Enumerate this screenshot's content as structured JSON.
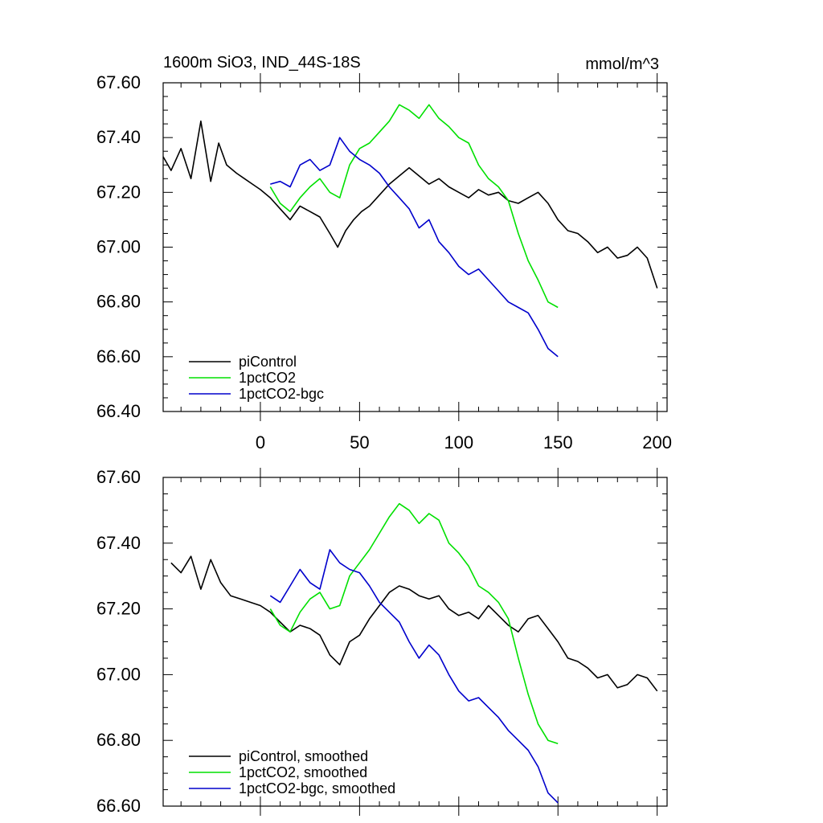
{
  "colors": {
    "piControl": "#000000",
    "1pctCO2": "#00e000",
    "1pctCO2-bgc": "#0000cc"
  },
  "top_title_left": "1600m SiO3, IND_44S-18S",
  "top_title_right": "mmol/m^3",
  "chart_data": [
    {
      "type": "line",
      "title": "1600m SiO3, IND_44S-18S",
      "units": "mmol/m^3",
      "xlim": [
        -49,
        205
      ],
      "ylim": [
        66.4,
        67.6
      ],
      "xticks": [
        0,
        50,
        100,
        150,
        200
      ],
      "xtick_labels": [
        "0",
        "50",
        "100",
        "150",
        "200"
      ],
      "yticks": [
        66.4,
        66.6,
        66.8,
        67.0,
        67.2,
        67.4,
        67.6
      ],
      "ytick_labels": [
        "66.40",
        "66.60",
        "66.80",
        "67.00",
        "67.20",
        "67.40",
        "67.60"
      ],
      "grid": false,
      "legend_position": "bottom-left",
      "series": [
        {
          "name": "piControl",
          "x": [
            -49,
            -45,
            -40,
            -35,
            -30,
            -25,
            -21,
            -17,
            -12,
            -8,
            -4,
            0,
            5,
            10,
            15,
            20,
            25,
            30,
            35,
            39,
            43,
            47,
            51,
            55,
            60,
            65,
            70,
            75,
            80,
            85,
            90,
            95,
            100,
            105,
            110,
            115,
            120,
            125,
            130,
            135,
            140,
            145,
            150,
            155,
            160,
            165,
            170,
            175,
            180,
            185,
            190,
            195,
            200
          ],
          "y": [
            67.33,
            67.28,
            67.36,
            67.25,
            67.46,
            67.24,
            67.38,
            67.3,
            67.27,
            67.25,
            67.23,
            67.21,
            67.18,
            67.14,
            67.1,
            67.15,
            67.13,
            67.11,
            67.05,
            67.0,
            67.06,
            67.1,
            67.13,
            67.15,
            67.19,
            67.23,
            67.26,
            67.29,
            67.26,
            67.23,
            67.25,
            67.22,
            67.2,
            67.18,
            67.21,
            67.19,
            67.2,
            67.17,
            67.16,
            67.18,
            67.2,
            67.16,
            67.1,
            67.06,
            67.05,
            67.02,
            66.98,
            67.0,
            66.96,
            66.97,
            67.0,
            66.96,
            66.85
          ]
        },
        {
          "name": "1pctCO2",
          "x": [
            5,
            10,
            15,
            20,
            25,
            30,
            35,
            40,
            45,
            50,
            55,
            60,
            65,
            70,
            75,
            80,
            85,
            90,
            95,
            100,
            105,
            110,
            115,
            120,
            125,
            130,
            135,
            140,
            145,
            150
          ],
          "y": [
            67.22,
            67.16,
            67.13,
            67.18,
            67.22,
            67.25,
            67.2,
            67.18,
            67.3,
            67.36,
            67.38,
            67.42,
            67.46,
            67.52,
            67.5,
            67.47,
            67.52,
            67.47,
            67.44,
            67.4,
            67.38,
            67.3,
            67.25,
            67.22,
            67.17,
            67.05,
            66.95,
            66.88,
            66.8,
            66.78
          ]
        },
        {
          "name": "1pctCO2-bgc",
          "x": [
            5,
            10,
            15,
            20,
            25,
            30,
            35,
            40,
            45,
            50,
            55,
            60,
            65,
            70,
            75,
            80,
            85,
            90,
            95,
            100,
            105,
            110,
            115,
            120,
            125,
            130,
            135,
            140,
            145,
            150
          ],
          "y": [
            67.23,
            67.24,
            67.22,
            67.3,
            67.32,
            67.28,
            67.3,
            67.4,
            67.35,
            67.32,
            67.3,
            67.27,
            67.22,
            67.18,
            67.14,
            67.07,
            67.1,
            67.02,
            66.98,
            66.93,
            66.9,
            66.92,
            66.88,
            66.84,
            66.8,
            66.78,
            66.76,
            66.7,
            66.63,
            66.6
          ]
        }
      ]
    },
    {
      "type": "line",
      "xlim": [
        -49,
        205
      ],
      "ylim": [
        66.6,
        67.6
      ],
      "xticks": [
        0,
        50,
        100,
        150,
        200
      ],
      "yticks": [
        66.6,
        66.8,
        67.0,
        67.2,
        67.4,
        67.6
      ],
      "ytick_labels": [
        "66.60",
        "66.80",
        "67.00",
        "67.20",
        "67.40",
        "67.60"
      ],
      "grid": false,
      "legend_position": "bottom-left",
      "series": [
        {
          "name": "piControl, smoothed",
          "x": [
            -45,
            -40,
            -35,
            -30,
            -25,
            -20,
            -15,
            -10,
            -5,
            0,
            5,
            10,
            15,
            20,
            25,
            30,
            35,
            40,
            45,
            50,
            55,
            60,
            65,
            70,
            75,
            80,
            85,
            90,
            95,
            100,
            105,
            110,
            115,
            120,
            125,
            130,
            135,
            140,
            145,
            150,
            155,
            160,
            165,
            170,
            175,
            180,
            185,
            190,
            195,
            200
          ],
          "y": [
            67.34,
            67.31,
            67.36,
            67.26,
            67.35,
            67.28,
            67.24,
            67.23,
            67.22,
            67.21,
            67.19,
            67.16,
            67.13,
            67.15,
            67.14,
            67.12,
            67.06,
            67.03,
            67.1,
            67.12,
            67.17,
            67.21,
            67.25,
            67.27,
            67.26,
            67.24,
            67.23,
            67.24,
            67.2,
            67.18,
            67.19,
            67.17,
            67.21,
            67.18,
            67.15,
            67.13,
            67.17,
            67.18,
            67.14,
            67.1,
            67.05,
            67.04,
            67.02,
            66.99,
            67.0,
            66.96,
            66.97,
            67.0,
            66.99,
            66.95
          ]
        },
        {
          "name": "1pctCO2, smoothed",
          "x": [
            5,
            10,
            15,
            20,
            25,
            30,
            35,
            40,
            45,
            50,
            55,
            60,
            65,
            70,
            75,
            80,
            85,
            90,
            95,
            100,
            105,
            110,
            115,
            120,
            125,
            130,
            135,
            140,
            145,
            150
          ],
          "y": [
            67.2,
            67.15,
            67.13,
            67.19,
            67.23,
            67.25,
            67.2,
            67.21,
            67.3,
            67.34,
            67.38,
            67.43,
            67.48,
            67.52,
            67.5,
            67.46,
            67.49,
            67.47,
            67.4,
            67.37,
            67.33,
            67.27,
            67.25,
            67.22,
            67.17,
            67.05,
            66.94,
            66.85,
            66.8,
            66.79
          ]
        },
        {
          "name": "1pctCO2-bgc, smoothed",
          "x": [
            5,
            10,
            15,
            20,
            25,
            30,
            35,
            40,
            45,
            50,
            55,
            60,
            65,
            70,
            75,
            80,
            85,
            90,
            95,
            100,
            105,
            110,
            115,
            120,
            125,
            130,
            135,
            140,
            145,
            150
          ],
          "y": [
            67.24,
            67.22,
            67.27,
            67.32,
            67.28,
            67.26,
            67.38,
            67.34,
            67.32,
            67.31,
            67.27,
            67.22,
            67.19,
            67.16,
            67.1,
            67.05,
            67.09,
            67.06,
            67.0,
            66.95,
            66.92,
            66.93,
            66.9,
            66.87,
            66.83,
            66.8,
            66.77,
            66.72,
            66.64,
            66.61
          ]
        }
      ]
    }
  ]
}
